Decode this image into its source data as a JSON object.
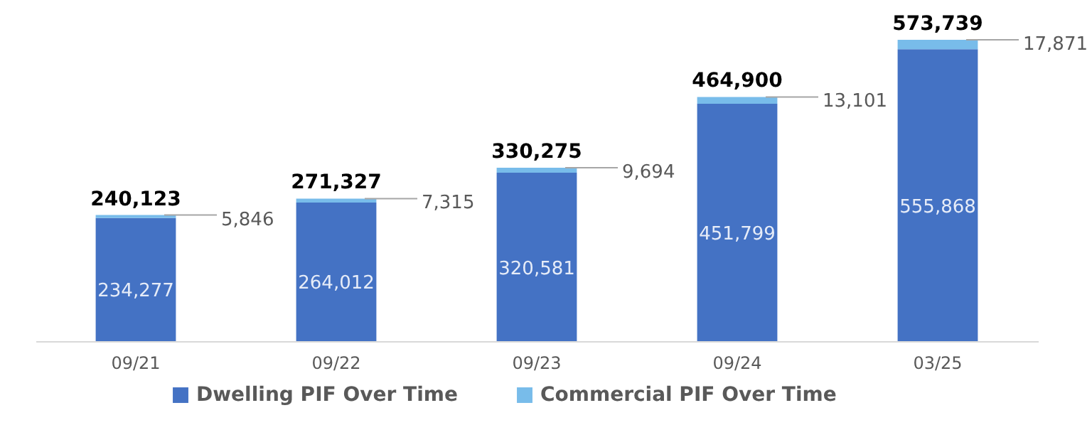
{
  "chart_data": {
    "type": "bar",
    "stacked": true,
    "categories": [
      "09/21",
      "09/22",
      "09/23",
      "09/24",
      "03/25"
    ],
    "series": [
      {
        "name": "Dwelling PIF Over Time",
        "color": "#4472c4",
        "values": [
          234277,
          264012,
          320581,
          451799,
          555868
        ],
        "value_labels": [
          "234,277",
          "264,012",
          "320,581",
          "451,799",
          "555,868"
        ]
      },
      {
        "name": "Commercial PIF Over Time",
        "color": "#78bcea",
        "values": [
          5846,
          7315,
          9694,
          13101,
          17871
        ],
        "value_labels": [
          "5,846",
          "7,315",
          "9,694",
          "13,101",
          "17,871"
        ]
      }
    ],
    "totals": [
      "240,123",
      "271,327",
      "330,275",
      "464,900",
      "573,739"
    ],
    "legend": "bottom",
    "tick_labels": "x"
  }
}
